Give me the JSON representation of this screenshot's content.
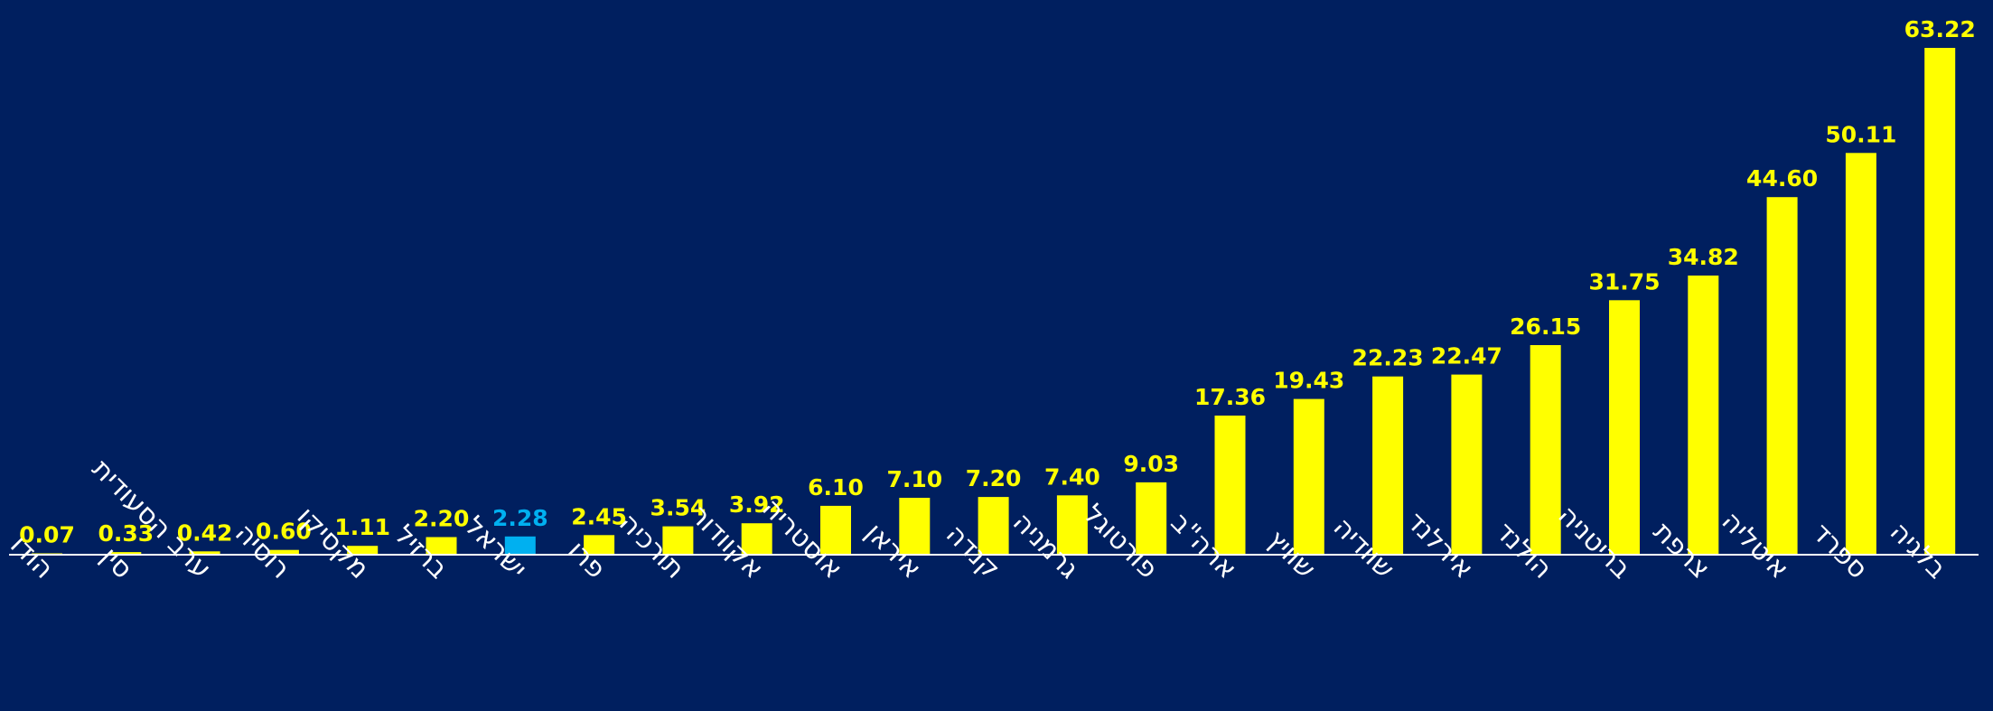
{
  "chart_data": {
    "type": "bar",
    "categories": [
      "הודו",
      "סין",
      "ערב הסעודית",
      "רוסיה",
      "מקסיקו",
      "ברזיל",
      "ישראל",
      "פרו",
      "תורכיה",
      "אקוודור",
      "אוסטריה",
      "איראן",
      "קנדה",
      "גרמניה",
      "פורטוגל",
      "ארה\"ב",
      "שוויץ",
      "שוודיה",
      "אירלנד",
      "הולנד",
      "בריטניה",
      "צרפת",
      "איטליה",
      "ספרד",
      "בלגיה"
    ],
    "values": [
      0.07,
      0.33,
      0.42,
      0.6,
      1.11,
      2.2,
      2.28,
      2.45,
      3.54,
      3.92,
      6.1,
      7.1,
      7.2,
      7.4,
      9.03,
      17.36,
      19.43,
      22.23,
      22.47,
      26.15,
      31.75,
      34.82,
      44.6,
      50.11,
      63.22
    ],
    "value_labels": [
      "0.07",
      "0.33",
      "0.42",
      "0.60",
      "1.11",
      "2.20",
      "2.28",
      "2.45",
      "3.54",
      "3.92",
      "6.10",
      "7.10",
      "7.20",
      "7.40",
      "9.03",
      "17.36",
      "19.43",
      "22.23",
      "22.47",
      "26.15",
      "31.75",
      "34.82",
      "44.60",
      "50.11",
      "63.22"
    ],
    "highlight_category": "ישראל",
    "title": "",
    "xlabel": "",
    "ylabel": "",
    "ylim": [
      0,
      63.22
    ],
    "grid": false,
    "legend": "none",
    "colors": {
      "background": "#001f5f",
      "bar": "#ffff00",
      "highlight_bar": "#00b0f0",
      "value_label": "#ffff00",
      "highlight_value_label": "#00b0f0",
      "category_label": "#ffffff",
      "axis": "#ffffff"
    }
  }
}
